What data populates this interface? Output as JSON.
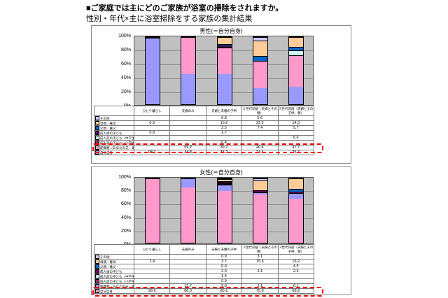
{
  "page": {
    "title": "■ご家庭では主にどのご家族が浴室の掃除をされますか。",
    "subtitle": "性別・年代×主に浴室掃除をする家族の集計結果"
  },
  "colors": {
    "plot_background": "#c0c0c0",
    "highlight_box": "#ff0000",
    "self_male": "#9999ff",
    "spouse_male": "#ff99cc",
    "child_under_elementary": "#993366",
    "child_under_middle": "#ccffff",
    "child_adult": "#660066",
    "father": "#0066cc",
    "mother": "#ffcc99",
    "other": "#ccccff"
  },
  "chart_data": [
    {
      "type": "bar",
      "stacked": true,
      "title": "男性(＝自分自身)",
      "ylim": [
        0,
        100
      ],
      "yticks": [
        "0%",
        "20%",
        "40%",
        "60%",
        "80%",
        "100%"
      ],
      "grid": true,
      "legend_position": "table-left",
      "categories": [
        "ひとり暮らし",
        "夫婦のみ",
        "夫婦と未婚の子供",
        "２世代同居（夫婦とその親）",
        "３世代同居（夫婦とその子供、親）"
      ],
      "rows": [
        {
          "label": "その他",
          "color": "#ccccff",
          "values": [
            null,
            null,
            0.8,
            5.6,
            null
          ]
        },
        {
          "label": "母親／養母",
          "color": "#ffcc99",
          "values": [
            0.9,
            null,
            10.2,
            22.2,
            14.3
          ]
        },
        {
          "label": "父親／養父",
          "color": "#0066cc",
          "values": [
            null,
            null,
            2.5,
            7.4,
            5.7
          ]
        },
        {
          "label": "成人後の子ども",
          "color": "#660066",
          "values": [
            0.9,
            null,
            1.7,
            null,
            null
          ]
        },
        {
          "label": "成人前の子ども（中学生以上）",
          "color": "#ccffff",
          "values": [
            null,
            null,
            null,
            null,
            6.6
          ]
        },
        {
          "label": "成人前の子ども（小学生以下）",
          "color": "#993366",
          "values": [
            null,
            null,
            0.4,
            null,
            null
          ]
        },
        {
          "label": "配偶者（あなたの夫、妻など）",
          "color": "#ff99cc",
          "values": [
            null,
            55.2,
            39.2,
            40.4,
            47.7
          ],
          "highlighted": true
        },
        {
          "label": "自分自身",
          "color": "#9999ff",
          "values": [
            98.1,
            44.8,
            45.2,
            24.4,
            25.7
          ]
        }
      ]
    },
    {
      "type": "bar",
      "stacked": true,
      "title": "女性(＝自分自身)",
      "ylim": [
        0,
        100
      ],
      "yticks": [
        "0%",
        "20%",
        "40%",
        "60%",
        "80%",
        "100%"
      ],
      "grid": true,
      "legend_position": "table-left",
      "categories": [
        "ひとり暮らし",
        "夫婦のみ",
        "夫婦と未婚の子供",
        "２世代同居（夫婦とその親）",
        "３世代同居（夫婦とその子供、親）"
      ],
      "rows": [
        {
          "label": "その他",
          "color": "#ccccff",
          "values": [
            null,
            null,
            0.9,
            3.1,
            null
          ]
        },
        {
          "label": "母親／養母",
          "color": "#ffcc99",
          "values": [
            1.4,
            null,
            3.7,
            15.6,
            16.2
          ]
        },
        {
          "label": "父親／養父",
          "color": "#0066cc",
          "values": [
            null,
            null,
            0.9,
            null,
            4.5
          ]
        },
        {
          "label": "成人後の子ども",
          "color": "#660066",
          "values": [
            null,
            null,
            2.3,
            3.1,
            2.3
          ]
        },
        {
          "label": "成人前の子ども（中学生以上）",
          "color": "#ccffff",
          "values": [
            null,
            null,
            1.4,
            null,
            null
          ]
        },
        {
          "label": "成人前の子ども（小学生以下）",
          "color": "#993366",
          "values": [
            null,
            null,
            0.9,
            null,
            null
          ]
        },
        {
          "label": "配偶者（あなたの夫、妻など）",
          "color": "#9999ff",
          "values": [
            null,
            13.7,
            9.8,
            3.1,
            8.1
          ]
        },
        {
          "label": "自分自身",
          "color": "#ff99cc",
          "values": [
            98.6,
            86.3,
            80.1,
            75.0,
            68.9
          ],
          "highlighted": true
        }
      ]
    }
  ]
}
